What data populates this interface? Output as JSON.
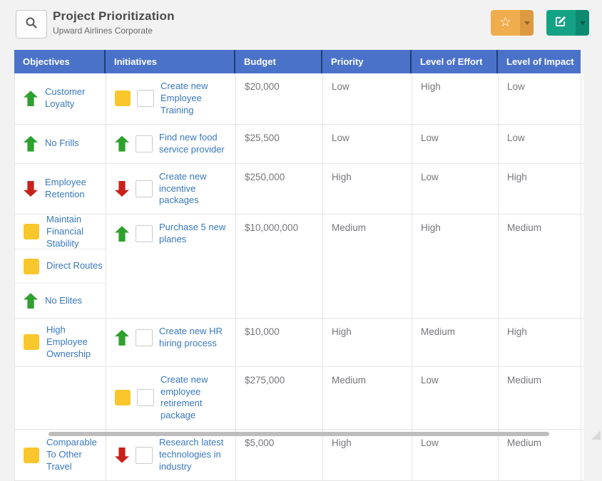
{
  "header": {
    "title": "Project Prioritization",
    "subtitle": "Upward Airlines Corporate"
  },
  "icons": {
    "star": "☆",
    "search": "magnifier",
    "edit": "pencil-square",
    "caret": "chevron-down"
  },
  "colors": {
    "header_blue": "#4a72c9",
    "header_separator": "#1e3e78",
    "link_blue": "#3878be",
    "value_gray": "#76757a",
    "arrow_green": "#2da02d",
    "arrow_red": "#c9201c",
    "square_yellow": "#f9c62b",
    "star_button_orange": "#f0ad4e",
    "edit_button_teal": "#14a285",
    "page_background": "#f2f2f2"
  },
  "table": {
    "columns": [
      "Objectives",
      "Initiatives",
      "Budget",
      "Priority",
      "Level of Effort",
      "Level of Impact"
    ],
    "rows": [
      {
        "objectives": [
          {
            "icon": "arrow-up",
            "label": "Customer Loyalty"
          }
        ],
        "initiative": {
          "icon": "square",
          "label": "Create new Employee Training"
        },
        "budget": "$20,000",
        "priority": "Low",
        "effort": "High",
        "impact": "Low"
      },
      {
        "objectives": [
          {
            "icon": "arrow-up",
            "label": "No Frills"
          }
        ],
        "initiative": {
          "icon": "arrow-up",
          "label": "Find new food service provider"
        },
        "budget": "$25,500",
        "priority": "Low",
        "effort": "Low",
        "impact": "Low"
      },
      {
        "objectives": [
          {
            "icon": "arrow-down",
            "label": "Employee Retention"
          }
        ],
        "initiative": {
          "icon": "arrow-down",
          "label": "Create new incentive packages"
        },
        "budget": "$250,000",
        "priority": "High",
        "effort": "Low",
        "impact": "High"
      },
      {
        "objectives": [
          {
            "icon": "square",
            "label": "Maintain Financial Stability"
          },
          {
            "icon": "square",
            "label": "Direct Routes"
          },
          {
            "icon": "arrow-up",
            "label": "No Elites"
          }
        ],
        "initiative": {
          "icon": "arrow-up",
          "label": "Purchase 5 new planes"
        },
        "budget": "$10,000,000",
        "priority": "Medium",
        "effort": "High",
        "impact": "Medium"
      },
      {
        "objectives": [
          {
            "icon": "square",
            "label": "High Employee Ownership"
          }
        ],
        "initiative": {
          "icon": "arrow-up",
          "label": "Create new HR hiring process"
        },
        "budget": "$10,000",
        "priority": "High",
        "effort": "Medium",
        "impact": "High"
      },
      {
        "objectives": [],
        "initiative": {
          "icon": "square",
          "label": "Create new employee retirement package"
        },
        "budget": "$275,000",
        "priority": "Medium",
        "effort": "Low",
        "impact": "Medium"
      },
      {
        "objectives": [
          {
            "icon": "square",
            "label": "Comparable To Other Travel"
          }
        ],
        "initiative": {
          "icon": "arrow-down",
          "label": "Research latest technologies in industry"
        },
        "budget": "$5,000",
        "priority": "High",
        "effort": "Low",
        "impact": "Medium"
      }
    ]
  }
}
